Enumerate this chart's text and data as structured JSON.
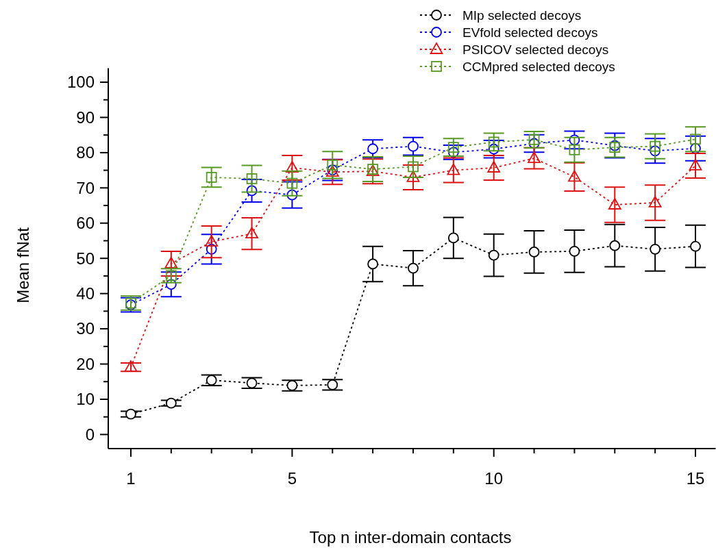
{
  "chart_data": {
    "type": "line",
    "xlabel": "Top n inter-domain contacts",
    "ylabel": "Mean fNat",
    "x": [
      1,
      2,
      3,
      4,
      5,
      6,
      7,
      8,
      9,
      10,
      11,
      12,
      13,
      14,
      15
    ],
    "xlim": [
      0.44,
      15.5
    ],
    "xticks": [
      1,
      {
        "value": 2,
        "label": null
      },
      {
        "value": 3,
        "label": null
      },
      {
        "value": 4,
        "label": null
      },
      5,
      {
        "value": 6,
        "label": null
      },
      {
        "value": 7,
        "label": null
      },
      {
        "value": 8,
        "label": null
      },
      {
        "value": 9,
        "label": null
      },
      10,
      {
        "value": 11,
        "label": null
      },
      {
        "value": 12,
        "label": null
      },
      {
        "value": 13,
        "label": null
      },
      {
        "value": 14,
        "label": null
      },
      15
    ],
    "ylim": [
      -4,
      104
    ],
    "yticks": [
      0,
      {
        "value": 5,
        "label": null
      },
      10,
      {
        "value": 15,
        "label": null
      },
      20,
      {
        "value": 25,
        "label": null
      },
      30,
      {
        "value": 35,
        "label": null
      },
      40,
      {
        "value": 45,
        "label": null
      },
      50,
      {
        "value": 55,
        "label": null
      },
      60,
      {
        "value": 65,
        "label": null
      },
      70,
      {
        "value": 75,
        "label": null
      },
      80,
      {
        "value": 85,
        "label": null
      },
      90,
      {
        "value": 95,
        "label": null
      },
      100
    ],
    "grid": false,
    "legend": "top right",
    "line_style": "dotted",
    "series": [
      {
        "name": "MIp selected decoys",
        "color": "#000000",
        "marker": "circle",
        "values": [
          5.8,
          8.9,
          15.4,
          14.6,
          13.9,
          14.1,
          48.4,
          47.2,
          55.8,
          50.9,
          51.8,
          52.0,
          53.6,
          52.6,
          53.4
        ],
        "errors": [
          0.8,
          0.8,
          1.5,
          1.5,
          1.5,
          1.5,
          5,
          5,
          5.8,
          6,
          6,
          6,
          6,
          6.2,
          6
        ]
      },
      {
        "name": "EVfold selected decoys",
        "color": "#0000ee",
        "marker": "circle",
        "values": [
          36.8,
          42.6,
          52.6,
          69.2,
          68.0,
          75.1,
          81.1,
          81.8,
          80.1,
          81.0,
          82.6,
          83.6,
          82.0,
          80.5,
          81.2
        ],
        "errors": [
          2,
          3.5,
          4.2,
          3.2,
          3.7,
          3,
          2.5,
          2.5,
          2,
          2.5,
          2.5,
          2.5,
          3.5,
          3.5,
          3.5
        ]
      },
      {
        "name": "PSICOV selected decoys",
        "color": "#dd1111",
        "marker": "triangle",
        "values": [
          19.1,
          48.5,
          54.7,
          57.0,
          75.7,
          74.5,
          74.7,
          73.0,
          75.0,
          75.7,
          78.4,
          73.1,
          65.2,
          65.8,
          76.3
        ],
        "errors": [
          1.2,
          3.5,
          4.5,
          4.5,
          3.5,
          3.5,
          3.5,
          3.5,
          3.5,
          3.5,
          3,
          4,
          5,
          5,
          3.5
        ]
      },
      {
        "name": "CCMpred selected decoys",
        "color": "#559922",
        "marker": "square",
        "values": [
          37.3,
          45.1,
          73.0,
          72.6,
          71.3,
          76.5,
          75.3,
          76.0,
          81.5,
          83.0,
          83.7,
          80.8,
          81.5,
          81.8,
          83.8
        ],
        "errors": [
          2,
          2,
          2.8,
          3.8,
          3.5,
          3.8,
          3.5,
          3,
          2.5,
          2.5,
          2.3,
          3.5,
          2.8,
          3.5,
          3.5
        ]
      }
    ]
  }
}
